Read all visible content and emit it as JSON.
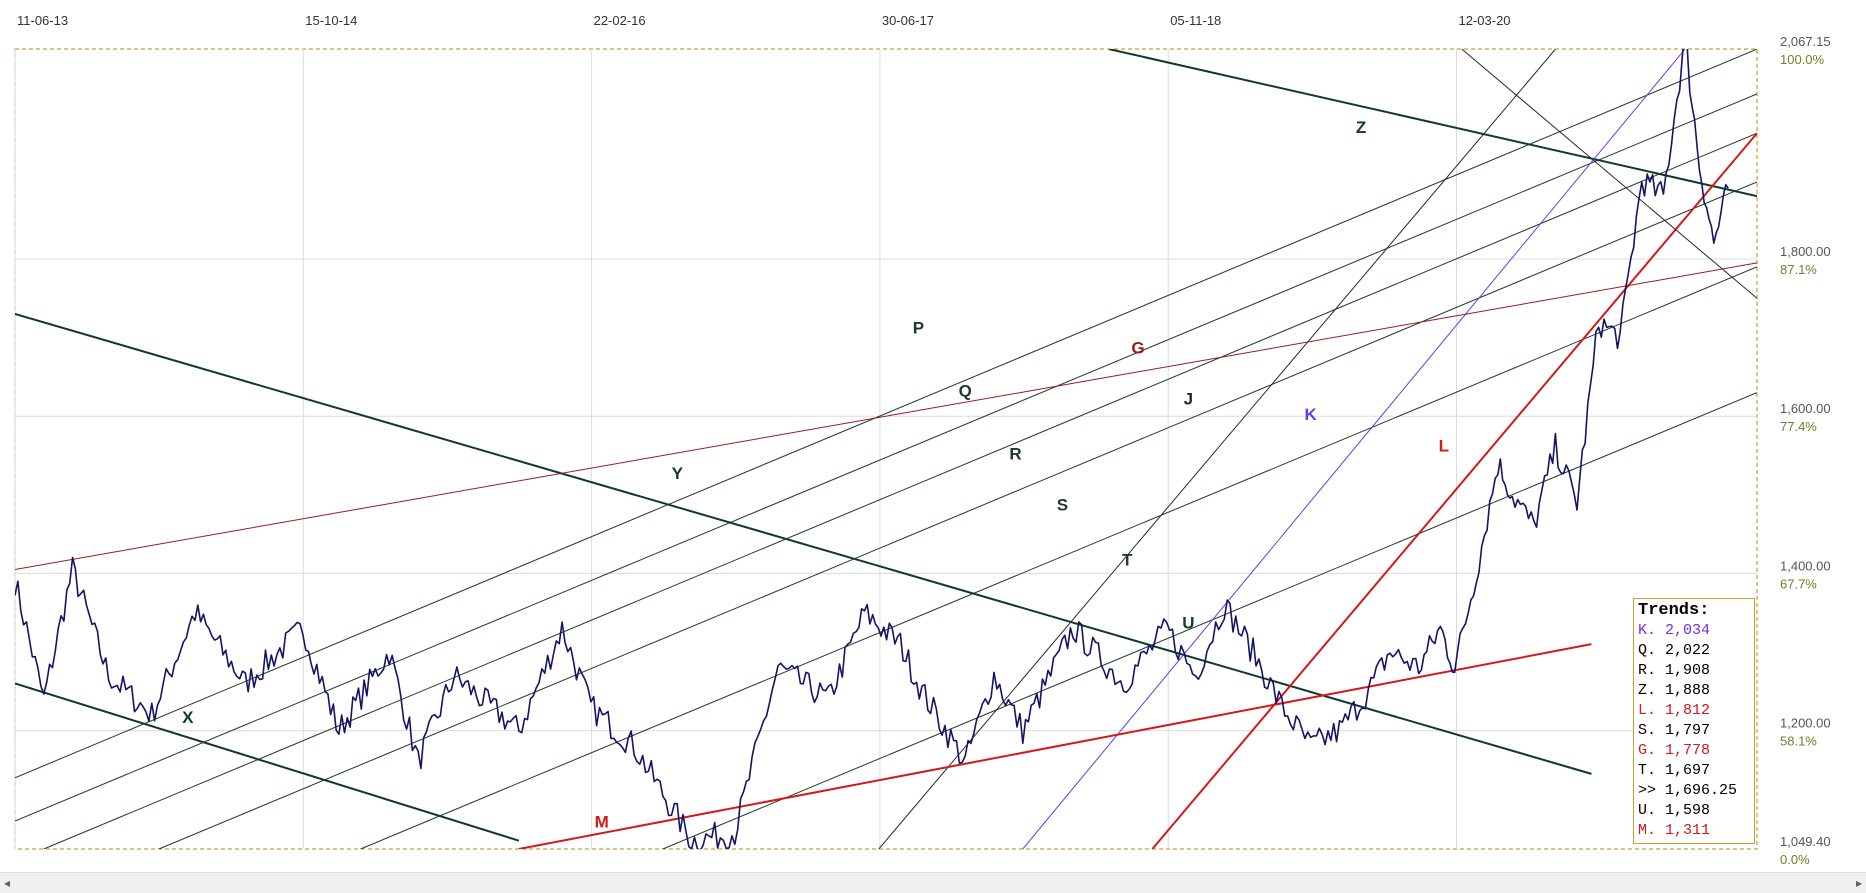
{
  "chart_data": {
    "type": "line",
    "title": "",
    "x_tick_labels": [
      "11-06-13",
      "15-10-14",
      "22-02-16",
      "30-06-17",
      "05-11-18",
      "12-03-20"
    ],
    "y_ticks": [
      {
        "value": 2067.15,
        "label": "2,067.15",
        "pct": "100.0%"
      },
      {
        "value": 1800,
        "label": "1,800.00",
        "pct": "87.1%"
      },
      {
        "value": 1600,
        "label": "1,600.00",
        "pct": "77.4%"
      },
      {
        "value": 1400,
        "label": "1,400.00",
        "pct": "67.7%"
      },
      {
        "value": 1200,
        "label": "1,200.00",
        "pct": "58.1%"
      },
      {
        "value": 1049.4,
        "label": "1,049.40",
        "pct": "0.0%"
      }
    ],
    "ylim": [
      1049.4,
      2067.15
    ],
    "xlim": [
      0,
      2420
    ],
    "grid": true,
    "series": [
      {
        "name": "price",
        "color": "#141466",
        "x": [
          0,
          40,
          80,
          130,
          190,
          250,
          320,
          400,
          450,
          520,
          560,
          610,
          700,
          760,
          800,
          860,
          940,
          1000,
          1060,
          1130,
          1180,
          1230,
          1260,
          1320,
          1360,
          1400,
          1470,
          1540,
          1600,
          1640,
          1680,
          1720,
          1760,
          1800,
          1840,
          1880,
          1910,
          1950,
          1980,
          2000,
          2030,
          2060,
          2080,
          2110,
          2140,
          2170,
          2200,
          2230,
          2260,
          2290,
          2320,
          2340,
          2360,
          2380
        ],
        "y": [
          1390,
          1240,
          1405,
          1270,
          1220,
          1350,
          1260,
          1330,
          1200,
          1300,
          1160,
          1270,
          1200,
          1330,
          1230,
          1180,
          1060,
          1070,
          1280,
          1240,
          1350,
          1310,
          1250,
          1160,
          1270,
          1200,
          1330,
          1260,
          1330,
          1270,
          1360,
          1300,
          1230,
          1180,
          1200,
          1250,
          1300,
          1280,
          1330,
          1280,
          1400,
          1540,
          1500,
          1460,
          1560,
          1490,
          1720,
          1700,
          1900,
          1880,
          2080,
          1920,
          1820,
          1890
        ]
      }
    ],
    "trendlines": [
      {
        "label": "X",
        "color": "#0e3a2a",
        "bold": true,
        "p1": [
          0,
          1260
        ],
        "p2": [
          700,
          1060
        ],
        "label_pos": [
          240,
          1210
        ]
      },
      {
        "label": "Y",
        "color": "#0e3a2a",
        "bold": true,
        "p1": [
          0,
          1730
        ],
        "p2": [
          2190,
          1145
        ],
        "label_pos": [
          920,
          1520
        ]
      },
      {
        "label": "Z",
        "color": "#0e3a2a",
        "bold": true,
        "p1": [
          1520,
          2067
        ],
        "p2": [
          2420,
          1880
        ],
        "label_pos": [
          1870,
          1960
        ]
      },
      {
        "label": "P",
        "color": "#1c3a2c",
        "bold": false,
        "p1": [
          0,
          1140
        ],
        "p2": [
          2420,
          2067
        ],
        "label_pos": [
          1255,
          1705
        ]
      },
      {
        "label": "Q",
        "color": "#1c3a2c",
        "bold": false,
        "p1": [
          0,
          1085
        ],
        "p2": [
          2420,
          2010
        ],
        "label_pos": [
          1320,
          1625
        ]
      },
      {
        "label": "R",
        "color": "#1c3a2c",
        "bold": false,
        "p1": [
          40,
          1049.4
        ],
        "p2": [
          2420,
          1960
        ],
        "label_pos": [
          1390,
          1545
        ]
      },
      {
        "label": "S",
        "color": "#1c3a2c",
        "bold": false,
        "p1": [
          200,
          1049.4
        ],
        "p2": [
          2420,
          1898
        ],
        "label_pos": [
          1455,
          1480
        ]
      },
      {
        "label": "T",
        "color": "#1c3a2c",
        "bold": false,
        "p1": [
          480,
          1049.4
        ],
        "p2": [
          2420,
          1790
        ],
        "label_pos": [
          1545,
          1410
        ]
      },
      {
        "label": "U",
        "color": "#1c3a2c",
        "bold": false,
        "p1": [
          900,
          1049.4
        ],
        "p2": [
          2420,
          1630
        ],
        "label_pos": [
          1630,
          1330
        ]
      },
      {
        "label": "J",
        "color": "#2a2a2a",
        "bold": false,
        "p1": [
          1200,
          1049.4
        ],
        "p2": [
          2140,
          2067
        ],
        "label_pos": [
          1630,
          1615
        ]
      },
      {
        "label": "K",
        "color": "#6a3de0",
        "bold": false,
        "p1": [
          1400,
          1049.4
        ],
        "p2": [
          2320,
          2067
        ],
        "label_pos": [
          1800,
          1595
        ]
      },
      {
        "label": "L",
        "color": "#d31919",
        "bold": true,
        "p1": [
          1580,
          1049.4
        ],
        "p2": [
          2420,
          1960
        ],
        "label_pos": [
          1985,
          1555
        ]
      },
      {
        "label": "G",
        "color": "#9b1c1c",
        "bold": false,
        "p1": [
          0,
          1405
        ],
        "p2": [
          2420,
          1795
        ],
        "label_pos": [
          1560,
          1680
        ]
      },
      {
        "label": "M",
        "color": "#d31919",
        "bold": true,
        "p1": [
          700,
          1049.4
        ],
        "p2": [
          2190,
          1310
        ],
        "label_pos": [
          815,
          1077
        ]
      },
      {
        "label": "",
        "color": "#2a2a2a",
        "bold": false,
        "p1": [
          2010,
          2067
        ],
        "p2": [
          2420,
          1750
        ],
        "label_pos": [
          0,
          0
        ]
      }
    ]
  },
  "legend": {
    "title": "Trends:",
    "items": [
      {
        "text": "K. 2,034",
        "color": "#7a2be0"
      },
      {
        "text": "Q. 2,022",
        "color": "#000000"
      },
      {
        "text": "R. 1,908",
        "color": "#000000"
      },
      {
        "text": "Z. 1,888",
        "color": "#000000"
      },
      {
        "text": "L. 1,812",
        "color": "#d31919"
      },
      {
        "text": "S. 1,797",
        "color": "#000000"
      },
      {
        "text": "G. 1,778",
        "color": "#d31919"
      },
      {
        "text": "T. 1,697",
        "color": "#000000"
      },
      {
        "text": ">> 1,696.25",
        "color": "#000000"
      },
      {
        "text": "U. 1,598",
        "color": "#000000"
      },
      {
        "text": "M. 1,311",
        "color": "#d31919"
      }
    ]
  },
  "scrollbar": {
    "left_arrow": "◂",
    "right_arrow": "▸"
  },
  "colors": {
    "frame": "#c9a227",
    "grid": "#dcdcdc"
  }
}
